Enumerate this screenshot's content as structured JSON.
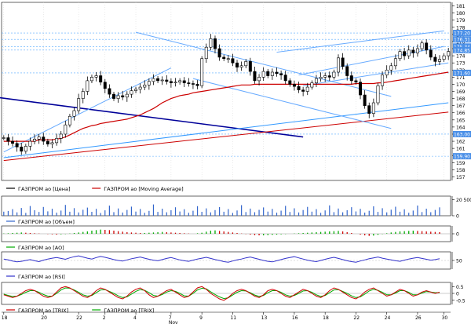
{
  "chart_data": [
    {
      "type": "candlestick",
      "panel": "price",
      "series": [
        {
          "name": "ГАЗПРОМ ао [Цена]",
          "color": "#000000"
        },
        {
          "name": "ГАЗПРОМ ао [Moving Average]",
          "color": "#cc0000"
        }
      ],
      "y_ticks": [
        157,
        158,
        159,
        160,
        161,
        162,
        163,
        164,
        165,
        166,
        167,
        168,
        169,
        170,
        171,
        172,
        173,
        174,
        175,
        176,
        177,
        178,
        179,
        180,
        181
      ],
      "ylim": [
        156.5,
        181.5
      ],
      "highlighted_levels": [
        {
          "value": 177.2,
          "label": "177.20"
        },
        {
          "value": 176.3,
          "label": "176.31"
        },
        {
          "value": 175.3,
          "label": "175.34"
        },
        {
          "value": 174.8,
          "label": "174.85"
        },
        {
          "value": 171.6,
          "label": "171.60"
        },
        {
          "value": 163.0,
          "label": "163.00"
        },
        {
          "value": 159.9,
          "label": "159.90"
        }
      ],
      "close": [
        162.5,
        162.0,
        161.7,
        161.2,
        160.6,
        161.3,
        162.0,
        162.3,
        162.6,
        162.0,
        161.6,
        161.8,
        162.4,
        163.0,
        164.3,
        165.5,
        166.3,
        168.0,
        169.0,
        170.5,
        171.0,
        171.2,
        170.3,
        169.4,
        168.6,
        168.0,
        168.4,
        168.2,
        168.6,
        169.1,
        169.3,
        169.6,
        169.9,
        170.4,
        170.8,
        170.5,
        170.6,
        170.4,
        170.2,
        170.3,
        170.5,
        170.2,
        170.1,
        170.0,
        169.8,
        173.6,
        175.2,
        176.4,
        175.0,
        173.8,
        173.6,
        173.6,
        173.0,
        172.4,
        172.6,
        173.2,
        171.8,
        170.5,
        171.0,
        171.8,
        171.2,
        171.7,
        171.5,
        171.3,
        170.5,
        170.0,
        169.7,
        169.2,
        169.0,
        169.6,
        170.2,
        170.8,
        171.0,
        171.2,
        171.0,
        171.7,
        173.7,
        172.5,
        171.2,
        170.5,
        170.3,
        168.5,
        167.0,
        165.9,
        167.4,
        169.8,
        171.3,
        172.0,
        172.6,
        173.6,
        174.6,
        174.0,
        174.8,
        174.4,
        175.0,
        175.8,
        174.8,
        173.8,
        173.2,
        173.5,
        174.0,
        174.6
      ],
      "ma": [
        162.0,
        162.0,
        162.0,
        162.0,
        162.0,
        162.0,
        162.0,
        162.0,
        162.2,
        162.2,
        162.2,
        162.2,
        162.3,
        162.4,
        162.6,
        162.9,
        163.2,
        163.5,
        163.8,
        164.0,
        164.2,
        164.3,
        164.5,
        164.6,
        164.7,
        164.8,
        164.9,
        165.0,
        165.1,
        165.3,
        165.5,
        165.7,
        166.0,
        166.3,
        166.6,
        167.0,
        167.4,
        167.7,
        168.0,
        168.2,
        168.4,
        168.5,
        168.6,
        168.8,
        168.9,
        169.0,
        169.1,
        169.2,
        169.3,
        169.4,
        169.5,
        169.6,
        169.7,
        169.8,
        169.9,
        169.9,
        169.9,
        170.0,
        170.0,
        170.0,
        170.0,
        170.0,
        170.0,
        170.0,
        170.0,
        170.0,
        170.0,
        170.0,
        170.0,
        170.0,
        170.0,
        170.0,
        170.0,
        170.0,
        170.0,
        170.0,
        170.0,
        170.0,
        170.0,
        170.0,
        170.1,
        170.1,
        170.1,
        170.1,
        170.1,
        170.2,
        170.2,
        170.3,
        170.4,
        170.5,
        170.6,
        170.7,
        170.8,
        170.9,
        171.0,
        171.1,
        171.2,
        171.3,
        171.4,
        171.5,
        171.6,
        171.7
      ],
      "trendlines": [
        {
          "from": [
            -2,
            168.2
          ],
          "to": [
            68,
            162.6
          ],
          "color": "#000099"
        },
        {
          "from": [
            0,
            159.7
          ],
          "to": [
            101,
            167.4
          ],
          "color": "#3399ff"
        },
        {
          "from": [
            0,
            159.3
          ],
          "to": [
            101,
            166.1
          ],
          "color": "#cc0000"
        },
        {
          "from": [
            0,
            160.5
          ],
          "to": [
            38,
            172.3
          ],
          "color": "#66aaff"
        },
        {
          "from": [
            30,
            177.3
          ],
          "to": [
            88,
            168.3
          ],
          "color": "#66aaff"
        },
        {
          "from": [
            43,
            170.8
          ],
          "to": [
            88,
            163.8
          ],
          "color": "#66aaff"
        },
        {
          "from": [
            62,
            174.5
          ],
          "to": [
            100,
            177.5
          ],
          "color": "#66aaff"
        },
        {
          "from": [
            67,
            171.3
          ],
          "to": [
            100,
            175.3
          ],
          "color": "#66aaff"
        },
        {
          "from": [
            68,
            169.8
          ],
          "to": [
            101,
            173.0
          ],
          "color": "#66aaff"
        }
      ]
    },
    {
      "type": "bar",
      "panel": "volume",
      "series": [
        {
          "name": "ГАЗПРОМ ао [Объем]",
          "color": "#3366cc"
        }
      ],
      "y_ticks": [
        {
          "value": 20500,
          "label": "20 500"
        },
        {
          "value": 0,
          "label": "0"
        }
      ],
      "ylim": [
        0,
        25000
      ],
      "values": [
        5200,
        6100,
        8400,
        4300,
        9900,
        3600,
        12400,
        7000,
        4800,
        11200,
        5600,
        8900,
        3900,
        6600,
        13800,
        5100,
        9700,
        4200,
        7600,
        10400,
        5000,
        8800,
        3500,
        6900,
        12900,
        4600,
        9300,
        4100,
        7400,
        11600,
        5300,
        8600,
        3700,
        6200,
        14400,
        4900,
        9000,
        4400,
        7100,
        10800,
        5400,
        8300,
        3800,
        6400,
        12200,
        5000,
        9400,
        4300,
        7200,
        11000,
        5100,
        8500,
        3600,
        6700,
        13500,
        4700,
        9100,
        4500,
        7500,
        10600,
        5300,
        8700,
        3900,
        6500,
        12600,
        4800,
        9500,
        4200,
        7300,
        11300,
        5200,
        8400,
        3700,
        6800,
        13200,
        4600,
        9200,
        4400,
        7000,
        10900,
        5500,
        8800,
        4000,
        6300,
        12000,
        4900,
        9600,
        4300,
        7700,
        11500,
        5100,
        8200,
        3800,
        6600,
        13000,
        4700,
        9000,
        4500,
        7400,
        10700
      ]
    },
    {
      "type": "histogram",
      "panel": "ao",
      "series": [
        {
          "name": "ГАЗПРОМ ао [AO]",
          "color": "#00aa00"
        }
      ],
      "y_ticks": [
        {
          "value": 0,
          "label": "0"
        }
      ],
      "ylim": [
        -3,
        3
      ],
      "values": [
        0.1,
        0.2,
        0.3,
        0.4,
        0.5,
        0.4,
        0.3,
        0.2,
        0.1,
        0.0,
        -0.1,
        -0.2,
        -0.3,
        -0.2,
        -0.1,
        0.1,
        0.3,
        0.5,
        0.7,
        0.9,
        1.2,
        1.4,
        1.6,
        1.5,
        1.4,
        1.2,
        1.0,
        0.8,
        0.6,
        0.5,
        0.4,
        0.3,
        0.3,
        0.4,
        0.5,
        0.6,
        0.7,
        0.6,
        0.5,
        0.4,
        0.3,
        0.2,
        0.1,
        0.0,
        0.2,
        0.4,
        0.8,
        1.2,
        1.3,
        1.1,
        0.9,
        0.7,
        0.5,
        0.3,
        0.1,
        -0.1,
        -0.3,
        -0.5,
        -0.6,
        -0.6,
        -0.5,
        -0.4,
        -0.3,
        -0.2,
        -0.1,
        0.0,
        0.1,
        0.2,
        0.3,
        0.4,
        0.5,
        0.6,
        0.7,
        0.8,
        0.9,
        1.0,
        1.1,
        0.9,
        0.6,
        0.3,
        0.0,
        -0.3,
        -0.6,
        -0.8,
        -0.7,
        -0.4,
        -0.1,
        0.2,
        0.5,
        0.7,
        0.9,
        1.0,
        1.1,
        1.2,
        1.1,
        1.0,
        0.9,
        0.8,
        0.7,
        0.6
      ]
    },
    {
      "type": "line",
      "panel": "rsi",
      "series": [
        {
          "name": "ГАЗПРОМ ао [RSI]",
          "color": "#3333cc"
        }
      ],
      "y_ticks": [
        {
          "value": 50,
          "label": "50"
        }
      ],
      "ylim": [
        20,
        80
      ],
      "values": [
        55,
        52,
        48,
        45,
        47,
        50,
        53,
        49,
        46,
        51,
        55,
        58,
        60,
        57,
        54,
        59,
        63,
        66,
        62,
        58,
        55,
        60,
        64,
        61,
        57,
        53,
        50,
        48,
        52,
        56,
        59,
        62,
        58,
        54,
        51,
        49,
        53,
        57,
        60,
        56,
        52,
        49,
        47,
        51,
        55,
        58,
        61,
        57,
        53,
        50,
        46,
        44,
        48,
        52,
        55,
        59,
        62,
        58,
        54,
        50,
        47,
        45,
        49,
        53,
        57,
        60,
        63,
        59,
        55,
        51,
        48,
        46,
        50,
        54,
        58,
        61,
        57,
        53,
        49,
        46,
        44,
        48,
        52,
        56,
        59,
        62,
        58,
        55,
        52,
        49,
        47,
        51,
        55,
        58,
        60,
        57,
        54,
        51,
        53,
        56
      ]
    },
    {
      "type": "line",
      "panel": "trix",
      "series": [
        {
          "name": "ГАЗПРОМ ао [TRIX]",
          "color": "#cc0000"
        },
        {
          "name": "ГАЗПРОМ ао [TRIX]",
          "color": "#00aa00"
        }
      ],
      "y_ticks": [
        {
          "value": 0.5,
          "label": "0.5"
        },
        {
          "value": 0,
          "label": "0"
        },
        {
          "value": -0.5,
          "label": "-0.5"
        }
      ],
      "ylim": [
        -0.8,
        0.8
      ],
      "trix": [
        -0.1,
        -0.2,
        -0.3,
        -0.2,
        0.0,
        0.2,
        0.3,
        0.2,
        0.0,
        -0.2,
        -0.3,
        -0.2,
        0.1,
        0.4,
        0.5,
        0.4,
        0.2,
        0.0,
        -0.2,
        -0.3,
        -0.1,
        0.2,
        0.4,
        0.3,
        0.1,
        -0.1,
        -0.3,
        -0.4,
        -0.2,
        0.1,
        0.3,
        0.4,
        0.2,
        -0.1,
        -0.3,
        -0.2,
        0.0,
        0.2,
        0.3,
        0.1,
        -0.1,
        -0.3,
        -0.2,
        0.1,
        0.4,
        0.5,
        0.3,
        0.0,
        -0.2,
        -0.4,
        -0.5,
        -0.3,
        0.0,
        0.2,
        0.3,
        0.2,
        0.0,
        -0.2,
        -0.3,
        -0.1,
        0.2,
        0.3,
        0.2,
        0.0,
        -0.2,
        -0.3,
        -0.1,
        0.1,
        0.3,
        0.2,
        0.0,
        -0.2,
        -0.3,
        -0.1,
        0.2,
        0.4,
        0.3,
        0.1,
        -0.1,
        -0.3,
        -0.4,
        -0.2,
        0.1,
        0.3,
        0.4,
        0.2,
        0.0,
        -0.2,
        -0.1,
        0.1,
        0.3,
        0.2,
        0.0,
        -0.2,
        -0.1,
        0.1,
        0.2,
        0.1,
        0.0,
        0.1
      ],
      "signal": [
        -0.05,
        -0.15,
        -0.22,
        -0.2,
        -0.08,
        0.08,
        0.2,
        0.2,
        0.08,
        -0.08,
        -0.2,
        -0.2,
        0.0,
        0.25,
        0.4,
        0.38,
        0.25,
        0.08,
        -0.1,
        -0.2,
        -0.15,
        0.05,
        0.25,
        0.28,
        0.15,
        0.0,
        -0.18,
        -0.3,
        -0.25,
        -0.05,
        0.15,
        0.28,
        0.22,
        0.05,
        -0.15,
        -0.2,
        -0.08,
        0.1,
        0.2,
        0.15,
        0.0,
        -0.18,
        -0.2,
        0.0,
        0.25,
        0.38,
        0.33,
        0.12,
        -0.08,
        -0.25,
        -0.38,
        -0.32,
        -0.12,
        0.08,
        0.2,
        0.18,
        0.05,
        -0.12,
        -0.22,
        -0.15,
        0.05,
        0.2,
        0.2,
        0.08,
        -0.1,
        -0.2,
        -0.15,
        0.0,
        0.18,
        0.2,
        0.08,
        -0.1,
        -0.22,
        -0.15,
        0.05,
        0.25,
        0.28,
        0.15,
        0.0,
        -0.18,
        -0.3,
        -0.25,
        -0.05,
        0.18,
        0.3,
        0.22,
        0.08,
        -0.1,
        -0.1,
        0.03,
        0.2,
        0.2,
        0.08,
        -0.1,
        -0.1,
        0.03,
        0.13,
        0.1,
        0.05,
        0.06
      ]
    }
  ],
  "x_axis": {
    "ticks": [
      {
        "index": 0,
        "label": "18"
      },
      {
        "index": 9,
        "label": "20"
      },
      {
        "index": 17,
        "label": "22"
      },
      {
        "index": 23,
        "label": "2"
      },
      {
        "index": 30,
        "label": "4"
      },
      {
        "index": 38,
        "label": "7"
      },
      {
        "index": 45,
        "label": "9"
      },
      {
        "index": 52,
        "label": "11"
      },
      {
        "index": 59,
        "label": "13"
      },
      {
        "index": 66,
        "label": "16"
      },
      {
        "index": 73,
        "label": "18"
      },
      {
        "index": 80,
        "label": "22"
      },
      {
        "index": 87,
        "label": "24"
      },
      {
        "index": 94,
        "label": "26"
      },
      {
        "index": 100,
        "label": "30"
      }
    ],
    "month_labels": [
      {
        "index": 38,
        "label": "Nov"
      }
    ]
  }
}
